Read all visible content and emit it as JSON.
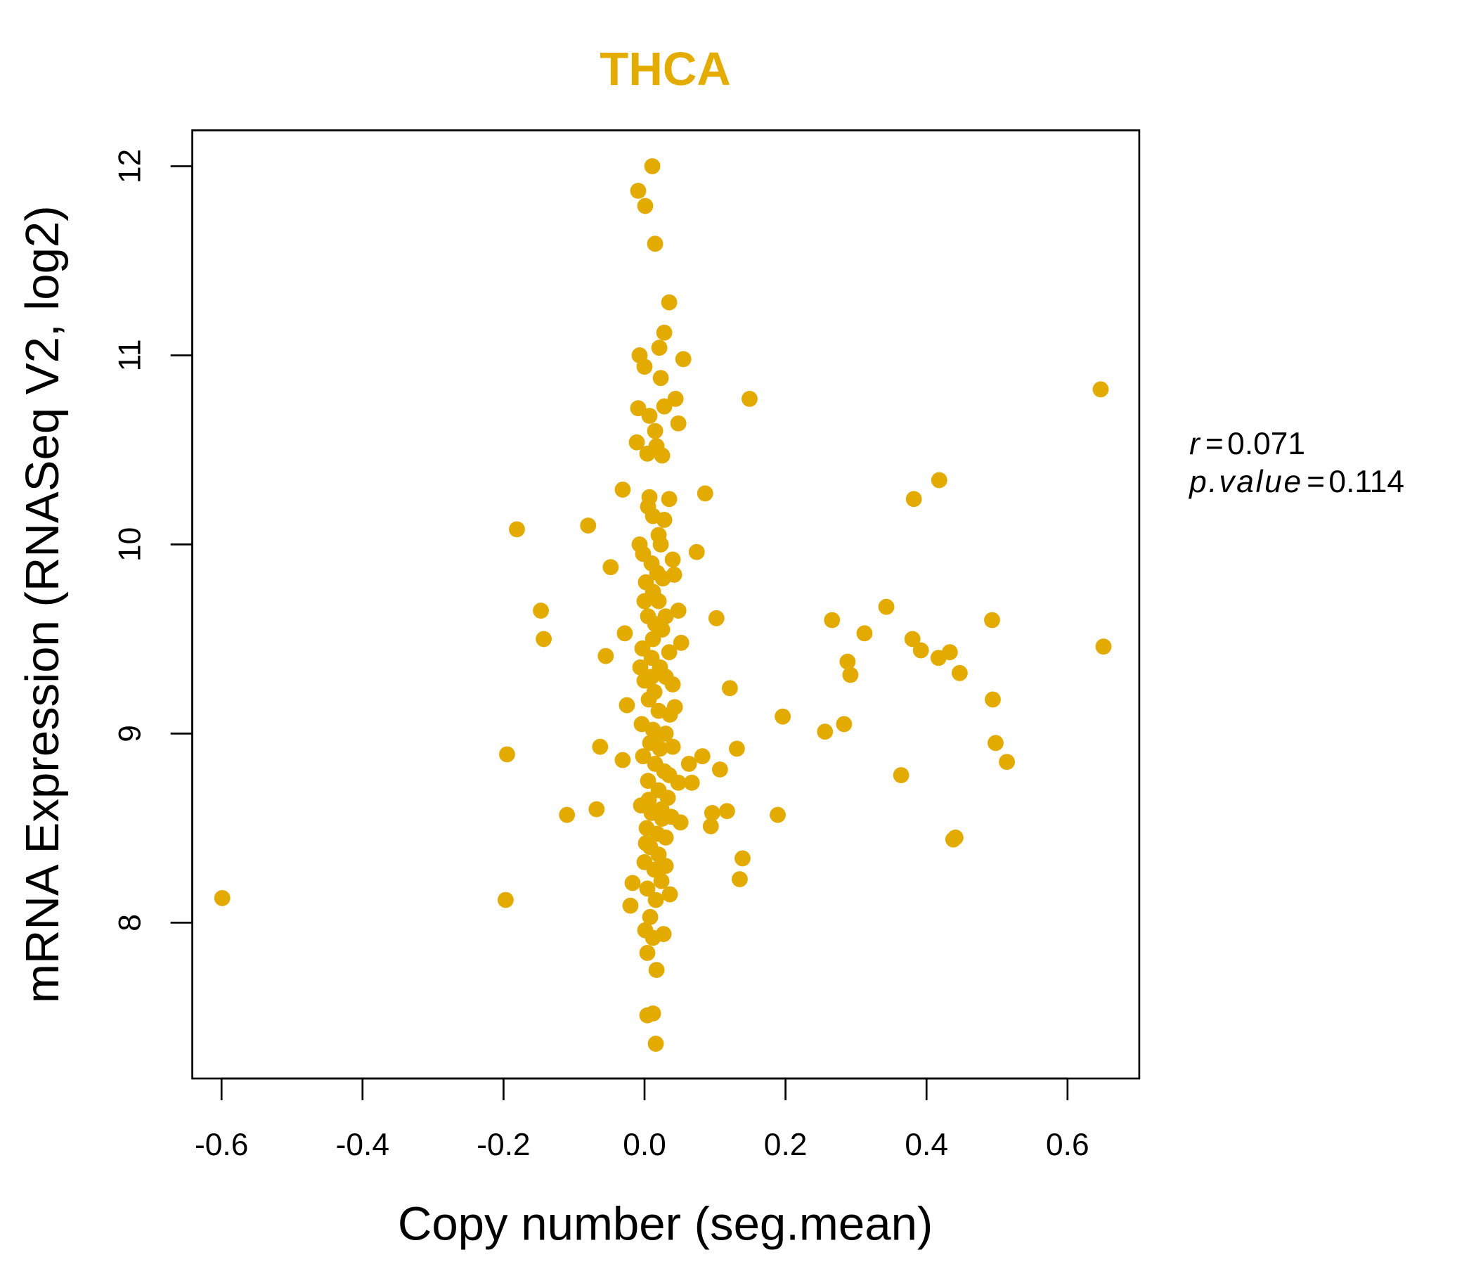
{
  "chart_data": {
    "type": "scatter",
    "title": "THCA",
    "xlabel": "Copy number (seg.mean)",
    "ylabel": "mRNA Expression (RNASeq V2, log2)",
    "xlim": [
      -0.64,
      0.7
    ],
    "ylim": [
      7.18,
      12.18
    ],
    "xticks": [
      -0.6,
      -0.4,
      -0.2,
      0.0,
      0.2,
      0.4,
      0.6
    ],
    "xtick_labels": [
      "-0.6",
      "-0.4",
      "-0.2",
      "0.0",
      "0.2",
      "0.4",
      "0.6"
    ],
    "yticks": [
      8,
      9,
      10,
      11,
      12
    ],
    "ytick_labels": [
      "8",
      "9",
      "10",
      "11",
      "12"
    ],
    "grid": false,
    "colors": {
      "title": "#E5AC00",
      "points": "#E3AB00"
    },
    "annotations": {
      "r_label": "r",
      "r_value": "0.071",
      "p_label": "p.value",
      "p_value": "0.114",
      "eq": "="
    },
    "points": [
      [
        -0.599,
        8.13
      ],
      [
        -0.197,
        8.12
      ],
      [
        -0.195,
        8.89
      ],
      [
        -0.181,
        10.08
      ],
      [
        -0.147,
        9.65
      ],
      [
        -0.143,
        9.5
      ],
      [
        -0.11,
        8.57
      ],
      [
        -0.08,
        10.1
      ],
      [
        -0.068,
        8.6
      ],
      [
        -0.063,
        8.93
      ],
      [
        -0.055,
        9.41
      ],
      [
        -0.048,
        9.88
      ],
      [
        -0.031,
        10.29
      ],
      [
        -0.028,
        9.53
      ],
      [
        -0.025,
        9.15
      ],
      [
        -0.031,
        8.86
      ],
      [
        -0.017,
        8.21
      ],
      [
        -0.02,
        8.09
      ],
      [
        -0.009,
        11.87
      ],
      [
        0.001,
        11.79
      ],
      [
        0.011,
        12.0
      ],
      [
        0.015,
        11.59
      ],
      [
        0.035,
        11.28
      ],
      [
        0.028,
        11.12
      ],
      [
        0.021,
        11.04
      ],
      [
        0.055,
        10.98
      ],
      [
        -0.007,
        11.0
      ],
      [
        0.0,
        10.94
      ],
      [
        0.023,
        10.88
      ],
      [
        0.044,
        10.77
      ],
      [
        0.149,
        10.77
      ],
      [
        0.647,
        10.82
      ],
      [
        0.048,
        10.64
      ],
      [
        -0.009,
        10.72
      ],
      [
        0.007,
        10.68
      ],
      [
        0.015,
        10.6
      ],
      [
        0.028,
        10.73
      ],
      [
        -0.011,
        10.54
      ],
      [
        0.004,
        10.48
      ],
      [
        0.017,
        10.52
      ],
      [
        0.025,
        10.47
      ],
      [
        0.007,
        10.25
      ],
      [
        0.035,
        10.24
      ],
      [
        0.028,
        10.13
      ],
      [
        0.086,
        10.27
      ],
      [
        0.382,
        10.24
      ],
      [
        0.418,
        10.34
      ],
      [
        0.074,
        9.96
      ],
      [
        0.04,
        9.92
      ],
      [
        0.042,
        9.84
      ],
      [
        0.023,
        10.0
      ],
      [
        -0.007,
        10.0
      ],
      [
        0.102,
        9.61
      ],
      [
        0.048,
        9.65
      ],
      [
        0.052,
        9.48
      ],
      [
        0.035,
        9.43
      ],
      [
        0.266,
        9.6
      ],
      [
        0.312,
        9.53
      ],
      [
        0.343,
        9.67
      ],
      [
        0.38,
        9.5
      ],
      [
        0.392,
        9.44
      ],
      [
        0.417,
        9.4
      ],
      [
        0.433,
        9.43
      ],
      [
        0.447,
        9.32
      ],
      [
        0.493,
        9.6
      ],
      [
        0.651,
        9.46
      ],
      [
        0.288,
        9.38
      ],
      [
        0.292,
        9.31
      ],
      [
        0.121,
        9.24
      ],
      [
        0.196,
        9.09
      ],
      [
        0.256,
        9.01
      ],
      [
        0.283,
        9.05
      ],
      [
        0.494,
        9.18
      ],
      [
        0.498,
        8.95
      ],
      [
        0.514,
        8.85
      ],
      [
        0.364,
        8.78
      ],
      [
        0.438,
        8.44
      ],
      [
        0.441,
        8.45
      ],
      [
        0.131,
        8.92
      ],
      [
        0.082,
        8.88
      ],
      [
        0.107,
        8.81
      ],
      [
        0.063,
        8.84
      ],
      [
        0.067,
        8.74
      ],
      [
        0.048,
        8.74
      ],
      [
        0.035,
        8.78
      ],
      [
        0.096,
        8.58
      ],
      [
        0.117,
        8.59
      ],
      [
        0.094,
        8.51
      ],
      [
        0.051,
        8.53
      ],
      [
        0.189,
        8.57
      ],
      [
        0.139,
        8.34
      ],
      [
        0.135,
        8.23
      ],
      [
        0.036,
        8.15
      ],
      [
        0.027,
        7.94
      ],
      [
        0.017,
        7.75
      ],
      [
        0.004,
        7.84
      ],
      [
        0.004,
        7.51
      ],
      [
        0.012,
        7.52
      ],
      [
        0.016,
        7.36
      ],
      [
        0.001,
        7.96
      ],
      [
        0.012,
        7.92
      ],
      [
        0.008,
        8.03
      ],
      [
        0.002,
        9.8
      ],
      [
        0.012,
        9.75
      ],
      [
        0.02,
        9.7
      ],
      [
        0.005,
        9.62
      ],
      [
        0.015,
        9.58
      ],
      [
        0.025,
        9.55
      ],
      [
        -0.003,
        9.45
      ],
      [
        0.01,
        9.4
      ],
      [
        0.022,
        9.35
      ],
      [
        0.03,
        9.3
      ],
      [
        0.0,
        9.28
      ],
      [
        0.014,
        9.22
      ],
      [
        0.04,
        9.26
      ],
      [
        0.006,
        9.18
      ],
      [
        0.02,
        9.12
      ],
      [
        0.043,
        9.14
      ],
      [
        -0.004,
        9.05
      ],
      [
        0.012,
        9.02
      ],
      [
        0.03,
        9.0
      ],
      [
        0.008,
        8.95
      ],
      [
        0.022,
        8.92
      ],
      [
        0.04,
        8.93
      ],
      [
        -0.002,
        8.88
      ],
      [
        0.015,
        8.84
      ],
      [
        0.028,
        8.8
      ],
      [
        0.005,
        8.75
      ],
      [
        0.02,
        8.7
      ],
      [
        0.033,
        8.66
      ],
      [
        -0.005,
        8.62
      ],
      [
        0.01,
        8.58
      ],
      [
        0.025,
        8.55
      ],
      [
        0.038,
        8.56
      ],
      [
        0.003,
        8.5
      ],
      [
        0.018,
        8.47
      ],
      [
        0.03,
        8.45
      ],
      [
        0.008,
        8.4
      ],
      [
        0.02,
        8.36
      ],
      [
        0.0,
        8.32
      ],
      [
        0.014,
        8.28
      ],
      [
        0.024,
        8.22
      ],
      [
        0.004,
        8.18
      ],
      [
        0.016,
        8.12
      ],
      [
        0.01,
        9.9
      ],
      [
        0.018,
        9.85
      ],
      [
        0.0,
        9.7
      ],
      [
        0.03,
        9.62
      ],
      [
        -0.006,
        9.35
      ],
      [
        0.036,
        9.1
      ],
      [
        0.012,
        9.5
      ],
      [
        0.016,
        8.98
      ],
      [
        0.006,
        8.65
      ],
      [
        0.024,
        8.6
      ],
      [
        0.002,
        8.42
      ],
      [
        0.03,
        8.3
      ],
      [
        0.012,
        10.15
      ],
      [
        0.005,
        10.2
      ],
      [
        0.02,
        10.05
      ],
      [
        -0.002,
        9.95
      ],
      [
        0.026,
        9.82
      ],
      [
        0.01,
        9.3
      ]
    ]
  }
}
